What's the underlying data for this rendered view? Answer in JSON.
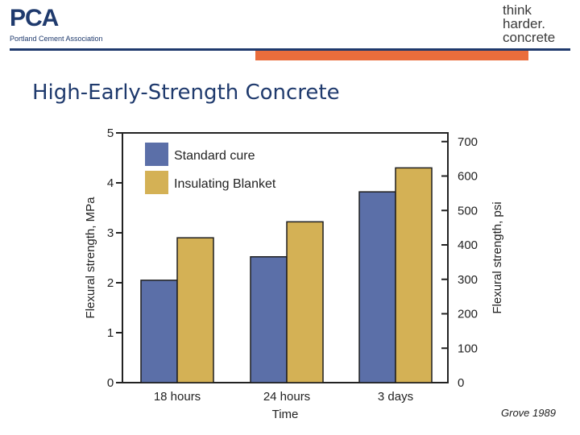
{
  "header": {
    "logo_text": "PCA",
    "logo_subtitle": "Portland Cement Association",
    "tagline": [
      "think",
      "harder.",
      "concrete"
    ],
    "brand_blue": "#1f3a6d",
    "accent_orange": "#ea6d3c"
  },
  "slide": {
    "title": "High-Early-Strength Concrete",
    "credit": "Grove 1989"
  },
  "chart_data": {
    "type": "bar",
    "categories": [
      "18 hours",
      "24 hours",
      "3 days"
    ],
    "series": [
      {
        "name": "Standard cure",
        "color": "#5b6fa8",
        "values": [
          2.05,
          2.52,
          3.82
        ]
      },
      {
        "name": "Insulating Blanket",
        "color": "#d4b155",
        "values": [
          2.9,
          3.22,
          4.3
        ]
      }
    ],
    "xlabel": "Time",
    "ylabel": "Flexural strength, MPa",
    "ylim": [
      0,
      5
    ],
    "yticks": [
      "0",
      "1",
      "2",
      "3",
      "4",
      "5"
    ],
    "y2label": "Flexural strength, psi",
    "y2lim": [
      0,
      725.2
    ],
    "y2ticks": [
      "0",
      "100",
      "200",
      "300",
      "400",
      "500",
      "600",
      "700"
    ],
    "legend_position": "top-left",
    "grid": false
  }
}
